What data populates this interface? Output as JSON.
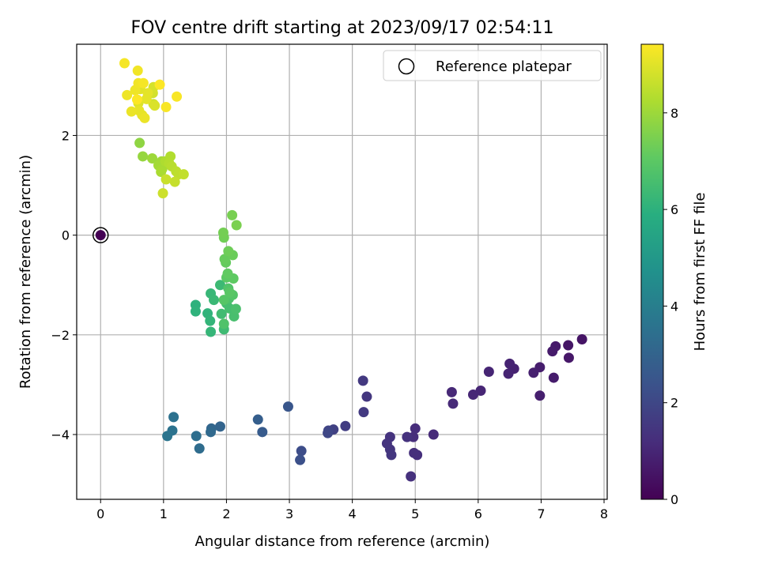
{
  "chart_data": {
    "type": "scatter",
    "title": "FOV centre drift starting at 2023/09/17 02:54:11",
    "xlabel": "Angular distance from reference (arcmin)",
    "ylabel": "Rotation from reference (arcmin)",
    "xlim": [
      -0.38,
      8.05
    ],
    "ylim": [
      -5.3,
      3.83
    ],
    "xticks": [
      0,
      1,
      2,
      3,
      4,
      5,
      6,
      7,
      8
    ],
    "yticks": [
      -4,
      -2,
      0,
      2
    ],
    "grid": true,
    "colormap": "viridis",
    "colorbar": {
      "label": "Hours from first FF file",
      "range": [
        0,
        9.42
      ],
      "ticks": [
        0,
        2,
        4,
        6,
        8
      ]
    },
    "legend": {
      "position": "top-right",
      "entries": [
        {
          "label": "Reference platepar",
          "marker": "open-circle"
        }
      ]
    },
    "reference_point": {
      "x": 0,
      "y": 0,
      "hours": 0
    },
    "points": [
      [
        7.65,
        -2.09,
        0.5
      ],
      [
        7.43,
        -2.21,
        0.55
      ],
      [
        7.44,
        -2.46,
        0.6
      ],
      [
        7.23,
        -2.23,
        0.65
      ],
      [
        7.18,
        -2.33,
        0.7
      ],
      [
        7.2,
        -2.86,
        0.72
      ],
      [
        6.98,
        -2.65,
        0.75
      ],
      [
        6.98,
        -3.22,
        0.8
      ],
      [
        6.88,
        -2.76,
        0.83
      ],
      [
        6.57,
        -2.68,
        0.87
      ],
      [
        6.5,
        -2.58,
        0.9
      ],
      [
        6.48,
        -2.78,
        0.93
      ],
      [
        6.17,
        -2.74,
        0.97
      ],
      [
        6.04,
        -3.12,
        1.0
      ],
      [
        5.92,
        -3.2,
        1.03
      ],
      [
        5.58,
        -3.15,
        1.07
      ],
      [
        5.6,
        -3.38,
        1.1
      ],
      [
        5.29,
        -4.0,
        1.13
      ],
      [
        5.0,
        -3.88,
        1.17
      ],
      [
        4.97,
        -4.05,
        1.2
      ],
      [
        5.03,
        -4.41,
        1.23
      ],
      [
        4.98,
        -4.37,
        1.27
      ],
      [
        4.93,
        -4.84,
        1.3
      ],
      [
        4.87,
        -4.05,
        1.33
      ],
      [
        4.6,
        -4.05,
        1.37
      ],
      [
        4.55,
        -4.18,
        1.4
      ],
      [
        4.6,
        -4.3,
        1.43
      ],
      [
        4.62,
        -4.41,
        1.47
      ],
      [
        4.23,
        -3.24,
        1.5
      ],
      [
        4.17,
        -2.92,
        1.55
      ],
      [
        4.18,
        -3.55,
        1.6
      ],
      [
        3.89,
        -3.83,
        1.7
      ],
      [
        3.7,
        -3.9,
        1.8
      ],
      [
        3.62,
        -3.92,
        1.9
      ],
      [
        3.61,
        -3.97,
        2.0
      ],
      [
        3.19,
        -4.33,
        2.2
      ],
      [
        3.17,
        -4.51,
        2.3
      ],
      [
        2.98,
        -3.44,
        2.5
      ],
      [
        2.57,
        -3.95,
        2.7
      ],
      [
        2.5,
        -3.7,
        2.8
      ],
      [
        1.9,
        -3.84,
        3.0
      ],
      [
        1.76,
        -3.88,
        3.1
      ],
      [
        1.75,
        -3.95,
        3.2
      ],
      [
        1.57,
        -4.28,
        3.3
      ],
      [
        1.52,
        -4.03,
        3.4
      ],
      [
        1.16,
        -3.65,
        3.5
      ],
      [
        1.14,
        -3.92,
        3.55
      ],
      [
        1.06,
        -4.03,
        3.6
      ],
      [
        1.51,
        -1.4,
        6.0
      ],
      [
        1.51,
        -1.53,
        6.05
      ],
      [
        1.7,
        -1.57,
        6.1
      ],
      [
        1.74,
        -1.72,
        6.15
      ],
      [
        1.75,
        -1.94,
        6.2
      ],
      [
        1.75,
        -1.17,
        6.25
      ],
      [
        1.8,
        -1.3,
        6.3
      ],
      [
        1.9,
        -1.0,
        6.35
      ],
      [
        1.96,
        -1.89,
        6.4
      ],
      [
        1.92,
        -1.58,
        6.45
      ],
      [
        2.0,
        -1.37,
        6.5
      ],
      [
        2.05,
        -1.47,
        6.55
      ],
      [
        2.12,
        -1.63,
        6.6
      ],
      [
        2.15,
        -1.48,
        6.65
      ],
      [
        2.04,
        -1.27,
        6.7
      ],
      [
        1.96,
        -1.78,
        6.75
      ],
      [
        2.03,
        -1.07,
        6.8
      ],
      [
        2.1,
        -1.2,
        6.85
      ],
      [
        1.96,
        -1.3,
        6.9
      ],
      [
        2.05,
        -1.15,
        6.95
      ],
      [
        2.0,
        -0.85,
        7.0
      ],
      [
        2.11,
        -0.87,
        7.05
      ],
      [
        2.02,
        -0.77,
        7.1
      ],
      [
        1.99,
        -0.55,
        7.15
      ],
      [
        1.97,
        -0.48,
        7.2
      ],
      [
        2.1,
        -0.4,
        7.25
      ],
      [
        2.03,
        -0.32,
        7.3
      ],
      [
        1.96,
        -0.05,
        7.35
      ],
      [
        1.95,
        0.05,
        7.4
      ],
      [
        2.09,
        0.4,
        7.45
      ],
      [
        2.16,
        0.2,
        7.5
      ],
      [
        0.62,
        1.85,
        7.8
      ],
      [
        0.67,
        1.58,
        7.9
      ],
      [
        0.82,
        1.54,
        8.0
      ],
      [
        0.97,
        1.48,
        8.05
      ],
      [
        0.92,
        1.4,
        8.1
      ],
      [
        0.98,
        1.33,
        8.15
      ],
      [
        0.96,
        1.27,
        8.2
      ],
      [
        1.03,
        1.48,
        8.25
      ],
      [
        1.11,
        1.58,
        8.3
      ],
      [
        1.09,
        1.44,
        8.35
      ],
      [
        1.13,
        1.38,
        8.4
      ],
      [
        1.2,
        1.28,
        8.45
      ],
      [
        1.24,
        1.22,
        8.5
      ],
      [
        1.32,
        1.22,
        8.55
      ],
      [
        1.18,
        1.07,
        8.6
      ],
      [
        1.04,
        1.12,
        8.65
      ],
      [
        0.99,
        0.84,
        8.7
      ],
      [
        0.84,
        2.63,
        8.75
      ],
      [
        0.83,
        2.85,
        8.8
      ],
      [
        0.84,
        2.97,
        8.85
      ],
      [
        0.86,
        2.6,
        8.9
      ],
      [
        0.6,
        2.65,
        8.95
      ],
      [
        0.63,
        2.93,
        9.0
      ],
      [
        0.66,
        3.04,
        9.0
      ],
      [
        0.75,
        2.85,
        9.05
      ],
      [
        0.73,
        2.73,
        9.05
      ],
      [
        0.61,
        2.5,
        9.1
      ],
      [
        0.66,
        2.41,
        9.1
      ],
      [
        0.7,
        2.35,
        9.15
      ],
      [
        0.49,
        2.48,
        9.15
      ],
      [
        0.42,
        2.81,
        9.2
      ],
      [
        0.55,
        2.91,
        9.2
      ],
      [
        0.6,
        3.05,
        9.25
      ],
      [
        0.59,
        3.3,
        9.25
      ],
      [
        0.38,
        3.45,
        9.3
      ],
      [
        0.68,
        3.05,
        9.3
      ],
      [
        1.04,
        2.57,
        9.35
      ],
      [
        1.21,
        2.78,
        9.35
      ],
      [
        0.94,
        3.02,
        9.4
      ],
      [
        0.58,
        2.72,
        9.4
      ]
    ]
  }
}
